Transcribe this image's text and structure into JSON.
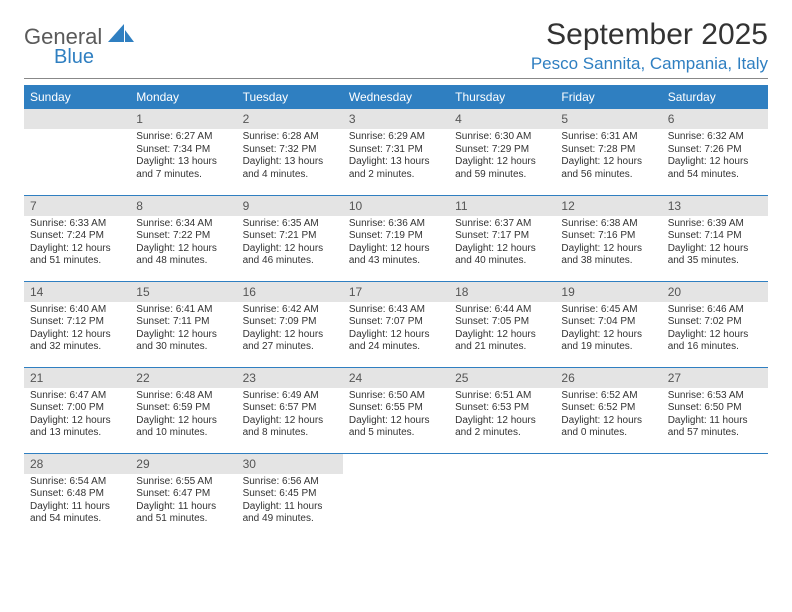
{
  "logo": {
    "word1": "General",
    "word2": "Blue",
    "color_gray": "#5a5a5a",
    "color_blue": "#2f7fc1"
  },
  "header": {
    "month_title": "September 2025",
    "location": "Pesco Sannita, Campania, Italy"
  },
  "colors": {
    "header_bg": "#2f7fc1",
    "header_text": "#ffffff",
    "daynum_bg": "#e4e4e4",
    "daynum_text": "#555555",
    "row_border": "#2f7fc1",
    "body_text": "#333333"
  },
  "daysOfWeek": [
    "Sunday",
    "Monday",
    "Tuesday",
    "Wednesday",
    "Thursday",
    "Friday",
    "Saturday"
  ],
  "weeks": [
    [
      null,
      {
        "n": "1",
        "sr": "Sunrise: 6:27 AM",
        "ss": "Sunset: 7:34 PM",
        "dl": "Daylight: 13 hours and 7 minutes."
      },
      {
        "n": "2",
        "sr": "Sunrise: 6:28 AM",
        "ss": "Sunset: 7:32 PM",
        "dl": "Daylight: 13 hours and 4 minutes."
      },
      {
        "n": "3",
        "sr": "Sunrise: 6:29 AM",
        "ss": "Sunset: 7:31 PM",
        "dl": "Daylight: 13 hours and 2 minutes."
      },
      {
        "n": "4",
        "sr": "Sunrise: 6:30 AM",
        "ss": "Sunset: 7:29 PM",
        "dl": "Daylight: 12 hours and 59 minutes."
      },
      {
        "n": "5",
        "sr": "Sunrise: 6:31 AM",
        "ss": "Sunset: 7:28 PM",
        "dl": "Daylight: 12 hours and 56 minutes."
      },
      {
        "n": "6",
        "sr": "Sunrise: 6:32 AM",
        "ss": "Sunset: 7:26 PM",
        "dl": "Daylight: 12 hours and 54 minutes."
      }
    ],
    [
      {
        "n": "7",
        "sr": "Sunrise: 6:33 AM",
        "ss": "Sunset: 7:24 PM",
        "dl": "Daylight: 12 hours and 51 minutes."
      },
      {
        "n": "8",
        "sr": "Sunrise: 6:34 AM",
        "ss": "Sunset: 7:22 PM",
        "dl": "Daylight: 12 hours and 48 minutes."
      },
      {
        "n": "9",
        "sr": "Sunrise: 6:35 AM",
        "ss": "Sunset: 7:21 PM",
        "dl": "Daylight: 12 hours and 46 minutes."
      },
      {
        "n": "10",
        "sr": "Sunrise: 6:36 AM",
        "ss": "Sunset: 7:19 PM",
        "dl": "Daylight: 12 hours and 43 minutes."
      },
      {
        "n": "11",
        "sr": "Sunrise: 6:37 AM",
        "ss": "Sunset: 7:17 PM",
        "dl": "Daylight: 12 hours and 40 minutes."
      },
      {
        "n": "12",
        "sr": "Sunrise: 6:38 AM",
        "ss": "Sunset: 7:16 PM",
        "dl": "Daylight: 12 hours and 38 minutes."
      },
      {
        "n": "13",
        "sr": "Sunrise: 6:39 AM",
        "ss": "Sunset: 7:14 PM",
        "dl": "Daylight: 12 hours and 35 minutes."
      }
    ],
    [
      {
        "n": "14",
        "sr": "Sunrise: 6:40 AM",
        "ss": "Sunset: 7:12 PM",
        "dl": "Daylight: 12 hours and 32 minutes."
      },
      {
        "n": "15",
        "sr": "Sunrise: 6:41 AM",
        "ss": "Sunset: 7:11 PM",
        "dl": "Daylight: 12 hours and 30 minutes."
      },
      {
        "n": "16",
        "sr": "Sunrise: 6:42 AM",
        "ss": "Sunset: 7:09 PM",
        "dl": "Daylight: 12 hours and 27 minutes."
      },
      {
        "n": "17",
        "sr": "Sunrise: 6:43 AM",
        "ss": "Sunset: 7:07 PM",
        "dl": "Daylight: 12 hours and 24 minutes."
      },
      {
        "n": "18",
        "sr": "Sunrise: 6:44 AM",
        "ss": "Sunset: 7:05 PM",
        "dl": "Daylight: 12 hours and 21 minutes."
      },
      {
        "n": "19",
        "sr": "Sunrise: 6:45 AM",
        "ss": "Sunset: 7:04 PM",
        "dl": "Daylight: 12 hours and 19 minutes."
      },
      {
        "n": "20",
        "sr": "Sunrise: 6:46 AM",
        "ss": "Sunset: 7:02 PM",
        "dl": "Daylight: 12 hours and 16 minutes."
      }
    ],
    [
      {
        "n": "21",
        "sr": "Sunrise: 6:47 AM",
        "ss": "Sunset: 7:00 PM",
        "dl": "Daylight: 12 hours and 13 minutes."
      },
      {
        "n": "22",
        "sr": "Sunrise: 6:48 AM",
        "ss": "Sunset: 6:59 PM",
        "dl": "Daylight: 12 hours and 10 minutes."
      },
      {
        "n": "23",
        "sr": "Sunrise: 6:49 AM",
        "ss": "Sunset: 6:57 PM",
        "dl": "Daylight: 12 hours and 8 minutes."
      },
      {
        "n": "24",
        "sr": "Sunrise: 6:50 AM",
        "ss": "Sunset: 6:55 PM",
        "dl": "Daylight: 12 hours and 5 minutes."
      },
      {
        "n": "25",
        "sr": "Sunrise: 6:51 AM",
        "ss": "Sunset: 6:53 PM",
        "dl": "Daylight: 12 hours and 2 minutes."
      },
      {
        "n": "26",
        "sr": "Sunrise: 6:52 AM",
        "ss": "Sunset: 6:52 PM",
        "dl": "Daylight: 12 hours and 0 minutes."
      },
      {
        "n": "27",
        "sr": "Sunrise: 6:53 AM",
        "ss": "Sunset: 6:50 PM",
        "dl": "Daylight: 11 hours and 57 minutes."
      }
    ],
    [
      {
        "n": "28",
        "sr": "Sunrise: 6:54 AM",
        "ss": "Sunset: 6:48 PM",
        "dl": "Daylight: 11 hours and 54 minutes."
      },
      {
        "n": "29",
        "sr": "Sunrise: 6:55 AM",
        "ss": "Sunset: 6:47 PM",
        "dl": "Daylight: 11 hours and 51 minutes."
      },
      {
        "n": "30",
        "sr": "Sunrise: 6:56 AM",
        "ss": "Sunset: 6:45 PM",
        "dl": "Daylight: 11 hours and 49 minutes."
      },
      null,
      null,
      null,
      null
    ]
  ]
}
